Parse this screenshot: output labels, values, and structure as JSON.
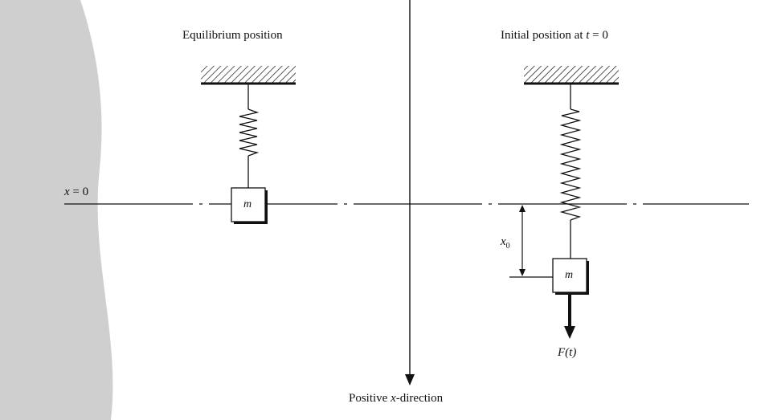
{
  "labels": {
    "equilibrium": "Equilibrium position",
    "initial_prefix": "Initial position at ",
    "initial_var": "t",
    "initial_suffix": " = 0",
    "x_zero_var": "x",
    "x_zero_suffix": " = 0",
    "displacement_var": "x",
    "displacement_sub": "0",
    "mass_left": "m",
    "mass_right": "m",
    "force": "F(t)",
    "positive_prefix": "Positive ",
    "positive_var": "x",
    "positive_suffix": "-direction"
  },
  "colors": {
    "background": "#ffffff",
    "ink": "#111111",
    "gray_panel": "#cfcfcf",
    "mass_fill": "#ffffff"
  }
}
